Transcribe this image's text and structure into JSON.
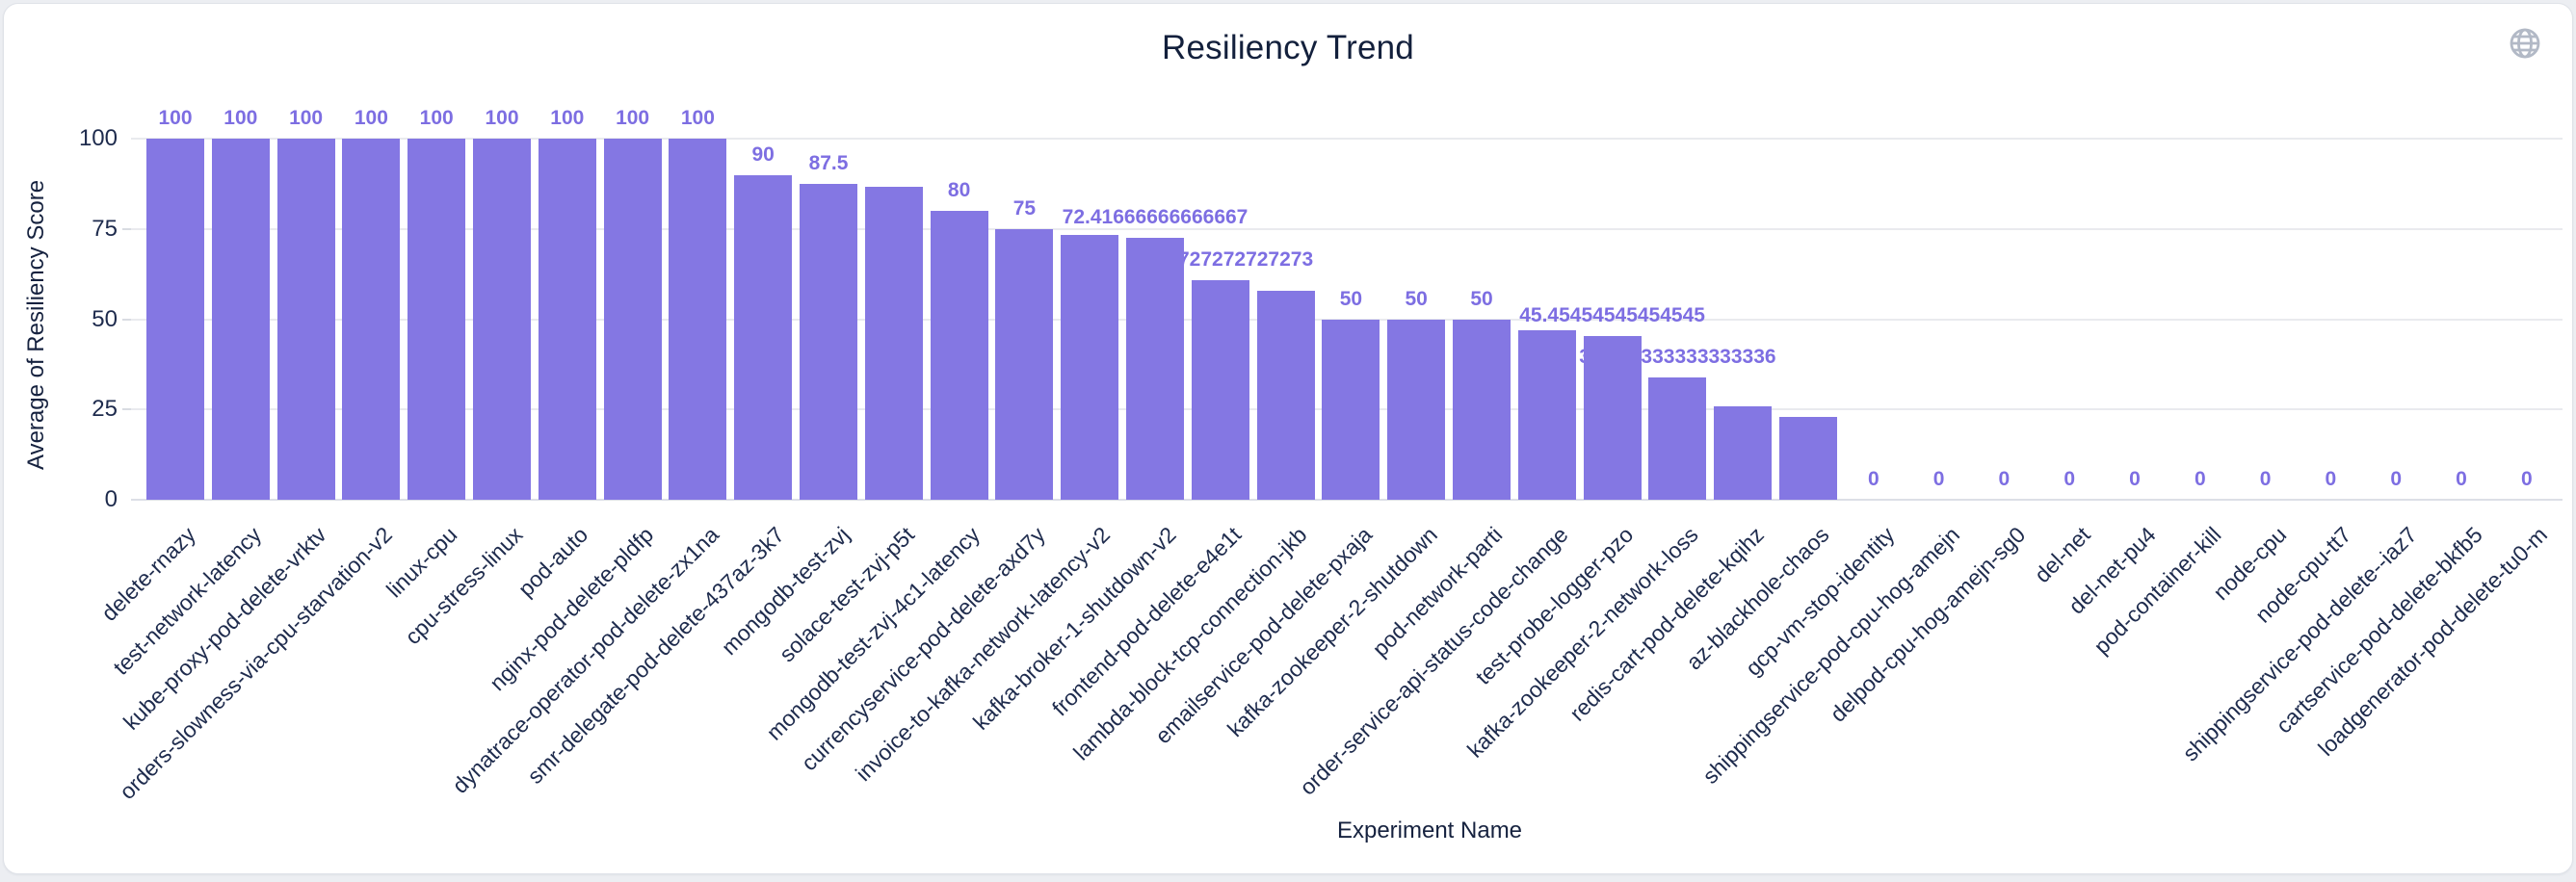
{
  "header": {
    "title": "Resiliency Trend"
  },
  "icons": {
    "globe_color": "#b2b9c6"
  },
  "colors": {
    "bar": "#8477e3",
    "value_label": "#7d6ee2",
    "axis_text": "#1e2b4d",
    "title_text": "#13203c",
    "gridline": "#e9eaee"
  },
  "chart_data": {
    "type": "bar",
    "title": "Resiliency Trend",
    "xlabel": "Experiment Name",
    "ylabel": "Average of Resiliency Score",
    "ylim": [
      0,
      100
    ],
    "yticks": [
      0,
      25,
      50,
      75,
      100
    ],
    "grid": true,
    "legend": false,
    "points": [
      {
        "name": "delete-rnazy",
        "value": 100,
        "label": "100"
      },
      {
        "name": "test-network-latency",
        "value": 100,
        "label": "100"
      },
      {
        "name": "kube-proxy-pod-delete-vrktv",
        "value": 100,
        "label": "100"
      },
      {
        "name": "orders-slowness-via-cpu-starvation-v2",
        "value": 100,
        "label": "100"
      },
      {
        "name": "linux-cpu",
        "value": 100,
        "label": "100"
      },
      {
        "name": "cpu-stress-linux",
        "value": 100,
        "label": "100"
      },
      {
        "name": "pod-auto",
        "value": 100,
        "label": "100"
      },
      {
        "name": "nginx-pod-delete-pldfp",
        "value": 100,
        "label": "100"
      },
      {
        "name": "dynatrace-operator-pod-delete-zx1na",
        "value": 100,
        "label": "100"
      },
      {
        "name": "smr-delegate-pod-delete-437az-3k7",
        "value": 90,
        "label": "90"
      },
      {
        "name": "mongodb-test-zvj",
        "value": 87.5,
        "label": "87.5"
      },
      {
        "name": "solace-test-zvj-p5t",
        "value": 86.7,
        "label": ""
      },
      {
        "name": "mongodb-test-zvj-4c1-latency",
        "value": 80,
        "label": "80"
      },
      {
        "name": "currencyservice-pod-delete-axd7y",
        "value": 75,
        "label": "75"
      },
      {
        "name": "invoice-to-kafka-network-latency-v2",
        "value": 73.3,
        "label": ""
      },
      {
        "name": "kafka-broker-1-shutdown-v2",
        "value": 72.41666666666667,
        "label": "72.41666666666667"
      },
      {
        "name": "frontend-pod-delete-e4e1t",
        "value": 60.72727272727273,
        "label": "60.72727272727273"
      },
      {
        "name": "lambda-block-tcp-connection-jkb",
        "value": 58,
        "label": ""
      },
      {
        "name": "emailservice-pod-delete-pxaja",
        "value": 50,
        "label": "50"
      },
      {
        "name": "kafka-zookeeper-2-shutdown",
        "value": 50,
        "label": "50"
      },
      {
        "name": "pod-network-parti",
        "value": 50,
        "label": "50"
      },
      {
        "name": "order-service-api-status-code-change",
        "value": 47,
        "label": ""
      },
      {
        "name": "test-probe-logger-pzo",
        "value": 45.45454545454545,
        "label": "45.45454545454545"
      },
      {
        "name": "kafka-zookeeper-2-network-loss",
        "value": 33.833333333333336,
        "label": "33.833333333333336"
      },
      {
        "name": "redis-cart-pod-delete-kqihz",
        "value": 26,
        "label": ""
      },
      {
        "name": "az-blackhole-chaos",
        "value": 23,
        "label": ""
      },
      {
        "name": "gcp-vm-stop-identity",
        "value": 0,
        "label": "0"
      },
      {
        "name": "shippingservice-pod-cpu-hog-amejn",
        "value": 0,
        "label": "0"
      },
      {
        "name": "delpod-cpu-hog-amejn-sg0",
        "value": 0,
        "label": "0"
      },
      {
        "name": "del-net",
        "value": 0,
        "label": "0"
      },
      {
        "name": "del-net-pu4",
        "value": 0,
        "label": "0"
      },
      {
        "name": "pod-container-kill",
        "value": 0,
        "label": "0"
      },
      {
        "name": "node-cpu",
        "value": 0,
        "label": "0"
      },
      {
        "name": "node-cpu-tt7",
        "value": 0,
        "label": "0"
      },
      {
        "name": "shippingservice-pod-delete--iaz7",
        "value": 0,
        "label": "0"
      },
      {
        "name": "cartservice-pod-delete-bkfb5",
        "value": 0,
        "label": "0"
      },
      {
        "name": "loadgenerator-pod-delete-tu0-m",
        "value": 0,
        "label": "0"
      }
    ]
  }
}
